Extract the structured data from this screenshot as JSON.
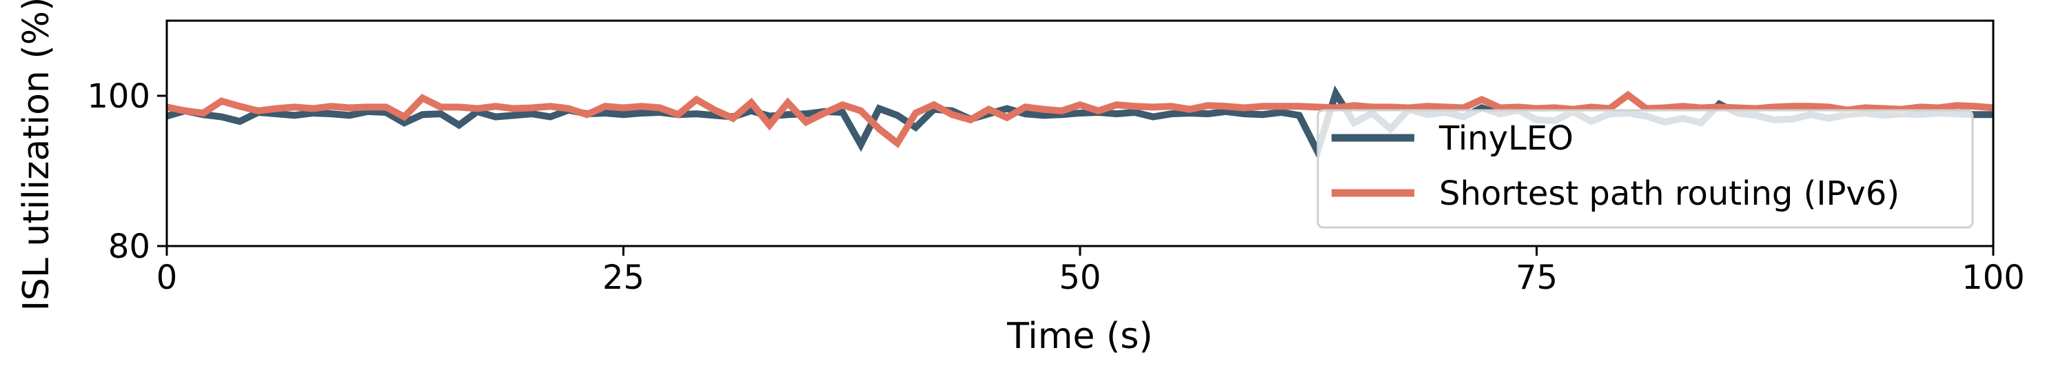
{
  "chart_data": {
    "type": "line",
    "xlabel": "Time (s)",
    "ylabel": "ISL utilization (%)",
    "xlim": [
      0,
      100
    ],
    "ylim": [
      80,
      110
    ],
    "xticks": [
      "0",
      "25",
      "50",
      "75",
      "100"
    ],
    "yticks": [
      "80",
      "100"
    ],
    "grid": false,
    "legend_position": "lower-right",
    "series": [
      {
        "name": "TinyLEO",
        "color": "#3d5a6e",
        "x": [
          0,
          1,
          2,
          3,
          4,
          5,
          6,
          7,
          8,
          9,
          10,
          11,
          12,
          13,
          14,
          15,
          16,
          17,
          18,
          19,
          20,
          21,
          22,
          23,
          24,
          25,
          26,
          27,
          28,
          29,
          30,
          31,
          32,
          33,
          34,
          35,
          36,
          37,
          38,
          39,
          40,
          41,
          42,
          43,
          44,
          45,
          46,
          47,
          48,
          49,
          50,
          51,
          52,
          53,
          54,
          55,
          56,
          57,
          58,
          59,
          60,
          61,
          62,
          63,
          64,
          65,
          66,
          67,
          68,
          69,
          70,
          71,
          72,
          73,
          74,
          75,
          76,
          77,
          78,
          79,
          80,
          81,
          82,
          83,
          84,
          85,
          86,
          87,
          88,
          89,
          90,
          91,
          92,
          93,
          94,
          95,
          96,
          97,
          98,
          99,
          100
        ],
        "y": [
          97.3,
          98.0,
          97.5,
          97.2,
          96.6,
          97.8,
          97.6,
          97.4,
          97.7,
          97.6,
          97.4,
          97.9,
          97.8,
          96.4,
          97.5,
          97.6,
          96.1,
          97.9,
          97.2,
          97.4,
          97.6,
          97.2,
          98.1,
          97.6,
          97.7,
          97.5,
          97.7,
          97.8,
          97.5,
          97.6,
          97.4,
          97.2,
          98.0,
          97.3,
          97.5,
          97.6,
          97.9,
          97.8,
          93.5,
          98.3,
          97.4,
          95.8,
          98.2,
          98.0,
          96.9,
          97.6,
          98.3,
          97.6,
          97.4,
          97.5,
          97.7,
          97.8,
          97.6,
          97.8,
          97.2,
          97.6,
          97.7,
          97.6,
          97.9,
          97.6,
          97.5,
          97.8,
          97.4,
          92.6,
          100.3,
          96.4,
          97.7,
          95.6,
          98.2,
          97.5,
          97.8,
          97.2,
          98.4,
          97.6,
          98.1,
          96.8,
          96.7,
          97.9,
          96.6,
          97.6,
          97.7,
          97.3,
          96.5,
          97.0,
          96.4,
          98.9,
          97.7,
          97.4,
          96.8,
          96.9,
          97.5,
          97.0,
          97.5,
          97.7,
          97.4,
          97.6,
          97.5,
          97.7,
          97.6,
          97.5,
          97.5
        ]
      },
      {
        "name": "Shortest path routing (IPv6)",
        "color": "#e07461",
        "x": [
          0,
          1,
          2,
          3,
          4,
          5,
          6,
          7,
          8,
          9,
          10,
          11,
          12,
          13,
          14,
          15,
          16,
          17,
          18,
          19,
          20,
          21,
          22,
          23,
          24,
          25,
          26,
          27,
          28,
          29,
          30,
          31,
          32,
          33,
          34,
          35,
          36,
          37,
          38,
          39,
          40,
          41,
          42,
          43,
          44,
          45,
          46,
          47,
          48,
          49,
          50,
          51,
          52,
          53,
          54,
          55,
          56,
          57,
          58,
          59,
          60,
          61,
          62,
          63,
          64,
          65,
          66,
          67,
          68,
          69,
          70,
          71,
          72,
          73,
          74,
          75,
          76,
          77,
          78,
          79,
          80,
          81,
          82,
          83,
          84,
          85,
          86,
          87,
          88,
          89,
          90,
          91,
          92,
          93,
          94,
          95,
          96,
          97,
          98,
          99,
          100
        ],
        "y": [
          98.5,
          98.0,
          97.7,
          99.3,
          98.6,
          98.0,
          98.3,
          98.5,
          98.3,
          98.6,
          98.4,
          98.5,
          98.5,
          97.2,
          99.7,
          98.5,
          98.5,
          98.3,
          98.6,
          98.3,
          98.4,
          98.6,
          98.3,
          97.5,
          98.6,
          98.4,
          98.6,
          98.4,
          97.5,
          99.5,
          98.1,
          97.0,
          99.1,
          96.1,
          99.1,
          96.5,
          97.7,
          98.8,
          98.0,
          95.6,
          93.7,
          97.7,
          98.8,
          97.5,
          96.8,
          98.2,
          97.1,
          98.5,
          98.2,
          98.0,
          98.8,
          98.0,
          98.8,
          98.6,
          98.5,
          98.6,
          98.2,
          98.7,
          98.6,
          98.4,
          98.6,
          98.6,
          98.6,
          98.5,
          98.4,
          98.7,
          98.5,
          98.5,
          98.4,
          98.6,
          98.5,
          98.4,
          99.5,
          98.4,
          98.5,
          98.3,
          98.4,
          98.2,
          98.5,
          98.3,
          100.1,
          98.3,
          98.4,
          98.6,
          98.4,
          98.5,
          98.4,
          98.3,
          98.5,
          98.6,
          98.6,
          98.5,
          98.1,
          98.4,
          98.3,
          98.2,
          98.5,
          98.4,
          98.7,
          98.6,
          98.4
        ]
      }
    ]
  }
}
